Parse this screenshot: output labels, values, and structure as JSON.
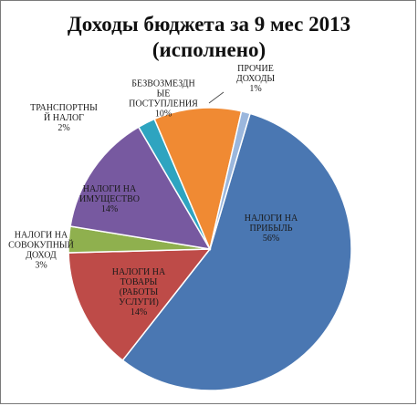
{
  "chart_data": {
    "type": "pie",
    "title": "Доходы бюджета за 9 мес 2013",
    "subtitle": "(исполнено)",
    "slices": [
      {
        "label": [
          "НАЛОГИ НА",
          "ПРИБЫЛЬ"
        ],
        "percent_label": "56%",
        "value": 56,
        "color": "#4a77b2"
      },
      {
        "label": [
          "НАЛОГИ НА",
          "ТОВАРЫ",
          "(РАБОТЫ",
          "УСЛУГИ)"
        ],
        "percent_label": "14%",
        "value": 14,
        "color": "#be4b48"
      },
      {
        "label": [
          "НАЛОГИ НА",
          "СОВОКУПНЫЙ",
          "ДОХОД"
        ],
        "percent_label": "3%",
        "value": 3,
        "color": "#8fb04e"
      },
      {
        "label": [
          "НАЛОГИ НА",
          "ИМУЩЕСТВО"
        ],
        "percent_label": "14%",
        "value": 14,
        "color": "#7759a0"
      },
      {
        "label": [
          "ТРАНСПОРТНЫ",
          "Й НАЛОГ"
        ],
        "percent_label": "2%",
        "value": 2,
        "color": "#2ea4c0"
      },
      {
        "label": [
          "БЕЗВОЗМЕЗДН",
          "ЫЕ",
          "ПОСТУПЛЕНИЯ"
        ],
        "percent_label": "10%",
        "value": 10,
        "color": "#f08a33"
      },
      {
        "label": [
          "ПРОЧИЕ",
          "ДОХОДЫ"
        ],
        "percent_label": "1%",
        "value": 1,
        "color": "#9bb7dd"
      }
    ]
  }
}
